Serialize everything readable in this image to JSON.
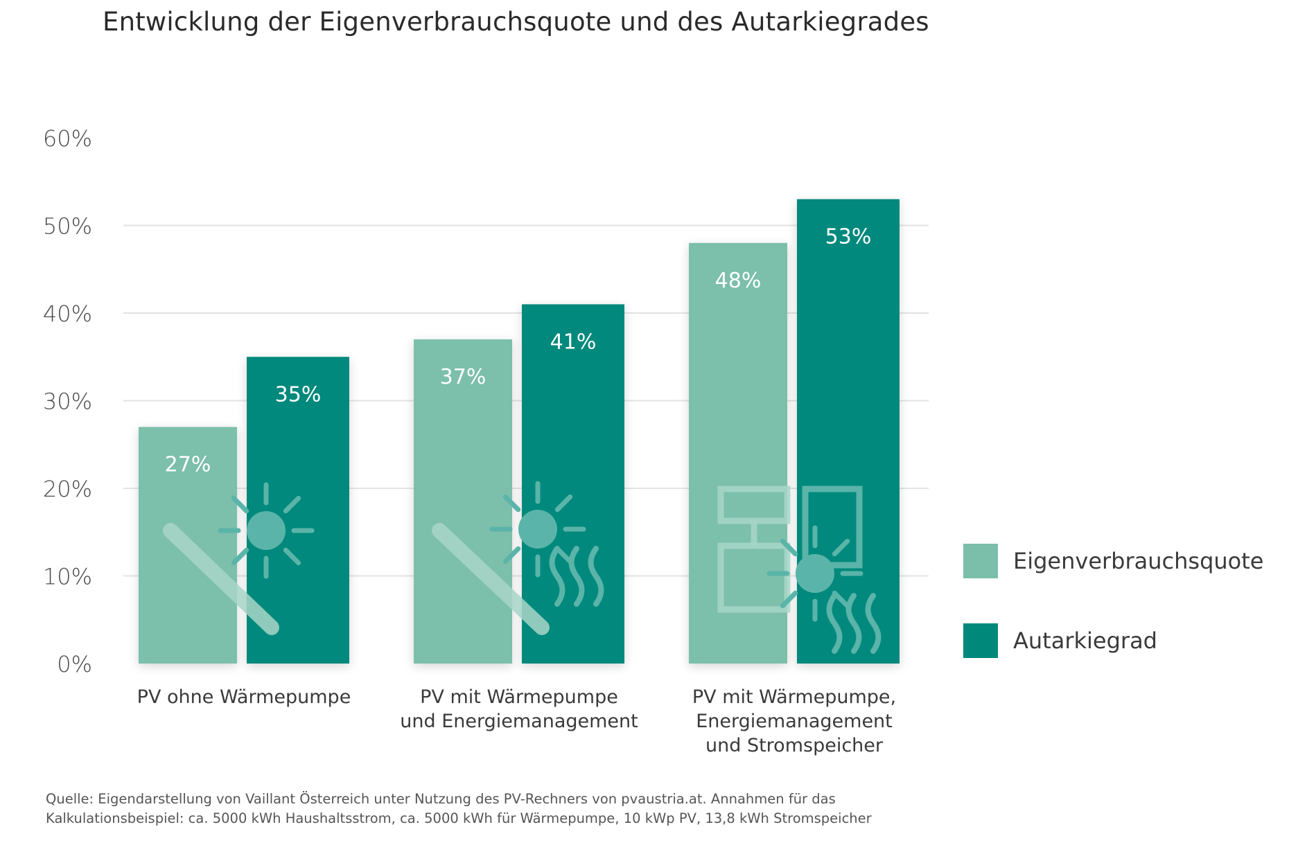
{
  "title": "Entwicklung der Eigenverbrauchsquote und des Autarkiegrades",
  "source_note": "Quelle: Eigendarstellung von Vaillant Österreich unter Nutzung des PV-Rechners von pvaustria.at. Annahmen für das Kalkulationsbeispiel: ca. 5000 kWh Haushaltsstrom, ca. 5000 kWh für Wärmepumpe, 10 kWp PV, 13,8 kWh Stromspeicher",
  "colors": {
    "eigenverbrauchsquote": "#7bbfaa",
    "autarkiegrad": "#00897b",
    "grid": "#e3e3e3",
    "icon_on_light": "#a8d6c8",
    "icon_on_dark": "#5bb4a9"
  },
  "icons": [
    "pv-panel-icon",
    "sun-icon",
    "heat-waves-icon",
    "storage-cabinet-icon"
  ],
  "legend": [
    {
      "label": "Eigenverbrauchsquote",
      "color": "#7bbfaa"
    },
    {
      "label": "Autarkiegrad",
      "color": "#00897b"
    }
  ],
  "chart_data": {
    "type": "bar",
    "title": "Entwicklung der Eigenverbrauchsquote und des Autarkiegrades",
    "xlabel": "",
    "ylabel": "",
    "ylim": [
      0,
      60
    ],
    "y_ticks": [
      0,
      10,
      20,
      30,
      40,
      50,
      60
    ],
    "y_tick_labels": [
      "0%",
      "10%",
      "20%",
      "30%",
      "40%",
      "50%",
      "60%"
    ],
    "grid": true,
    "legend_position": "right",
    "categories": [
      [
        "PV ohne Wärmepumpe"
      ],
      [
        "PV mit Wärmepumpe",
        "und Energiemanagement"
      ],
      [
        "PV mit Wärmepumpe,",
        "Energiemanagement",
        "und Stromspeicher"
      ]
    ],
    "series": [
      {
        "name": "Eigenverbrauchsquote",
        "values": [
          27,
          37,
          48
        ],
        "labels": [
          "27%",
          "37%",
          "48%"
        ]
      },
      {
        "name": "Autarkiegrad",
        "values": [
          35,
          41,
          53
        ],
        "labels": [
          "35%",
          "41%",
          "53%"
        ]
      }
    ]
  }
}
